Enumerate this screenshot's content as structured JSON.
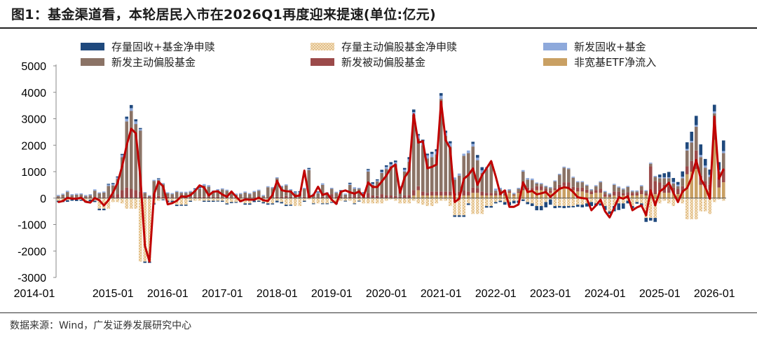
{
  "title": "图1：基金渠道看，本轮居民入市在2026Q1再度迎来提速(单位:亿元)",
  "source": "数据来源：Wind，广发证券发展研究中心",
  "colors": {
    "stock_fixed_plus": "#1F497D",
    "stock_active_equity": "#E9C896",
    "new_fixed_plus": "#8EA9DB",
    "new_active_equity": "#8B7366",
    "new_passive_equity": "#9B4A4A",
    "non_broad_etf": "#C9A063",
    "total_line": "#C00000"
  },
  "chart_data": {
    "type": "bar",
    "stacked": true,
    "title": "",
    "xlabel": "",
    "ylabel": "",
    "ylim": [
      -3000,
      5000
    ],
    "yticks": [
      5000,
      4000,
      3000,
      2000,
      1000,
      0,
      -1000,
      -2000,
      -3000
    ],
    "xtick_labels": [
      "2014-01",
      "2015-01",
      "2016-01",
      "2017-01",
      "2018-01",
      "2019-01",
      "2020-01",
      "2021-01",
      "2022-01",
      "2023-01",
      "2024-01",
      "2025-01",
      "2026-01"
    ],
    "grid": false,
    "legend_position": "top",
    "months": [
      "2014-01",
      "2014-02",
      "2014-03",
      "2014-04",
      "2014-05",
      "2014-06",
      "2014-07",
      "2014-08",
      "2014-09",
      "2014-10",
      "2014-11",
      "2014-12",
      "2015-01",
      "2015-02",
      "2015-03",
      "2015-04",
      "2015-05",
      "2015-06",
      "2015-07",
      "2015-08",
      "2015-09",
      "2015-10",
      "2015-11",
      "2015-12",
      "2016-01",
      "2016-02",
      "2016-03",
      "2016-04",
      "2016-05",
      "2016-06",
      "2016-07",
      "2016-08",
      "2016-09",
      "2016-10",
      "2016-11",
      "2016-12",
      "2017-01",
      "2017-02",
      "2017-03",
      "2017-04",
      "2017-05",
      "2017-06",
      "2017-07",
      "2017-08",
      "2017-09",
      "2017-10",
      "2017-11",
      "2017-12",
      "2018-01",
      "2018-02",
      "2018-03",
      "2018-04",
      "2018-05",
      "2018-06",
      "2018-07",
      "2018-08",
      "2018-09",
      "2018-10",
      "2018-11",
      "2018-12",
      "2019-01",
      "2019-02",
      "2019-03",
      "2019-04",
      "2019-05",
      "2019-06",
      "2019-07",
      "2019-08",
      "2019-09",
      "2019-10",
      "2019-11",
      "2019-12",
      "2020-01",
      "2020-02",
      "2020-03",
      "2020-04",
      "2020-05",
      "2020-06",
      "2020-07",
      "2020-08",
      "2020-09",
      "2020-10",
      "2020-11",
      "2020-12",
      "2021-01",
      "2021-02",
      "2021-03",
      "2021-04",
      "2021-05",
      "2021-06",
      "2021-07",
      "2021-08",
      "2021-09",
      "2021-10",
      "2021-11",
      "2021-12",
      "2022-01",
      "2022-02",
      "2022-03",
      "2022-04",
      "2022-05",
      "2022-06",
      "2022-07",
      "2022-08",
      "2022-09",
      "2022-10",
      "2022-11",
      "2022-12",
      "2023-01",
      "2023-02",
      "2023-03",
      "2023-04",
      "2023-05",
      "2023-06",
      "2023-07",
      "2023-08",
      "2023-09",
      "2023-10",
      "2023-11",
      "2023-12",
      "2024-01",
      "2024-02",
      "2024-03",
      "2024-04",
      "2024-05",
      "2024-06",
      "2024-07",
      "2024-08",
      "2024-09",
      "2024-10",
      "2024-11",
      "2024-12",
      "2025-01",
      "2025-02",
      "2025-03",
      "2025-04",
      "2025-05",
      "2025-06",
      "2025-07",
      "2025-08",
      "2025-09",
      "2025-10",
      "2025-11",
      "2025-12",
      "2026-01",
      "2026-02",
      "2026-03"
    ],
    "series": [
      {
        "key": "stock_fixed_plus",
        "name": "存量固收+基金净申赎",
        "values": [
          -50,
          -50,
          -60,
          -40,
          -50,
          -40,
          -60,
          -60,
          -50,
          -60,
          -60,
          30,
          40,
          40,
          40,
          80,
          120,
          80,
          40,
          -50,
          -50,
          -40,
          30,
          -30,
          -50,
          -50,
          -50,
          -40,
          -40,
          -40,
          30,
          30,
          -40,
          -40,
          -40,
          -30,
          -40,
          -40,
          -40,
          -30,
          -50,
          -50,
          -50,
          -50,
          -40,
          -50,
          -50,
          -40,
          -60,
          -50,
          -50,
          -40,
          30,
          40,
          -40,
          40,
          -30,
          30,
          -30,
          -30,
          -30,
          -30,
          30,
          -30,
          40,
          -30,
          -30,
          30,
          40,
          60,
          40,
          80,
          60,
          80,
          60,
          30,
          60,
          80,
          100,
          50,
          60,
          60,
          80,
          80,
          100,
          80,
          80,
          -60,
          -60,
          -60,
          -60,
          80,
          100,
          120,
          -60,
          -60,
          -50,
          -50,
          -100,
          -120,
          -100,
          -80,
          -60,
          -80,
          -100,
          -160,
          -160,
          -200,
          -200,
          -80,
          -60,
          -80,
          -60,
          -50,
          -80,
          -100,
          -120,
          -150,
          -100,
          -80,
          -150,
          -100,
          -200,
          -250,
          -200,
          -100,
          -80,
          -60,
          -100,
          -150,
          -100,
          -150,
          100,
          150,
          200,
          150,
          100,
          200,
          250,
          350,
          350,
          400,
          250,
          200,
          250,
          300,
          400
        ]
      },
      {
        "key": "stock_active_equity",
        "name": "存量主动偏股基金净申赎",
        "values": [
          -100,
          -100,
          -80,
          -60,
          -60,
          -60,
          -100,
          -60,
          -100,
          -400,
          -400,
          -400,
          -150,
          -150,
          -200,
          -400,
          -400,
          -400,
          -2400,
          -2400,
          -2400,
          -200,
          -100,
          -50,
          -100,
          -100,
          -250,
          -250,
          -250,
          -100,
          -100,
          -100,
          -100,
          -100,
          -100,
          -100,
          -100,
          -200,
          -150,
          -150,
          -100,
          -200,
          -200,
          -100,
          -100,
          -150,
          -200,
          -200,
          -100,
          -150,
          -250,
          -250,
          -300,
          -300,
          -100,
          -50,
          -200,
          -200,
          -200,
          -200,
          -150,
          -200,
          -100,
          -100,
          -100,
          -200,
          -100,
          -200,
          -200,
          -200,
          -200,
          -200,
          -100,
          -50,
          -100,
          -200,
          -200,
          -200,
          -100,
          -200,
          -250,
          -300,
          -300,
          -200,
          -100,
          -100,
          -300,
          -650,
          -650,
          -650,
          -200,
          -600,
          -600,
          -600,
          -300,
          -300,
          -150,
          -100,
          -150,
          -150,
          -100,
          -100,
          -50,
          -150,
          -200,
          -300,
          -300,
          -150,
          -50,
          -300,
          -300,
          -300,
          -300,
          -300,
          -250,
          -250,
          -200,
          -150,
          -200,
          -200,
          -300,
          -500,
          -300,
          -200,
          -200,
          -100,
          -300,
          -150,
          -200,
          -750,
          -750,
          -750,
          -200,
          -100,
          -200,
          -300,
          -150,
          -200,
          -800,
          -800,
          -800,
          -500,
          -500,
          -600,
          -150,
          -50,
          -100
        ]
      },
      {
        "key": "new_fixed_plus",
        "name": "新发固收+基金",
        "values": [
          40,
          40,
          50,
          40,
          40,
          40,
          40,
          40,
          50,
          40,
          40,
          50,
          50,
          50,
          80,
          100,
          100,
          100,
          60,
          30,
          30,
          40,
          40,
          40,
          40,
          40,
          40,
          40,
          40,
          40,
          40,
          40,
          60,
          60,
          40,
          40,
          40,
          40,
          40,
          40,
          40,
          40,
          40,
          40,
          40,
          40,
          40,
          40,
          40,
          40,
          40,
          40,
          40,
          40,
          40,
          40,
          40,
          40,
          60,
          40,
          40,
          40,
          40,
          40,
          40,
          60,
          40,
          40,
          60,
          40,
          40,
          40,
          80,
          80,
          80,
          60,
          80,
          100,
          100,
          120,
          150,
          120,
          120,
          120,
          120,
          120,
          120,
          80,
          80,
          80,
          100,
          100,
          100,
          100,
          80,
          80,
          80,
          60,
          60,
          40,
          40,
          40,
          60,
          60,
          60,
          40,
          40,
          40,
          40,
          40,
          40,
          40,
          40,
          40,
          40,
          40,
          40,
          40,
          40,
          40,
          40,
          40,
          40,
          40,
          40,
          40,
          40,
          40,
          40,
          40,
          40,
          40,
          40,
          40,
          40,
          60,
          60,
          60,
          60,
          60,
          60,
          80,
          80,
          80,
          80,
          60,
          80
        ]
      },
      {
        "key": "new_active_equity",
        "name": "新发主动偏股基金",
        "values": [
          50,
          100,
          200,
          80,
          100,
          110,
          50,
          80,
          250,
          150,
          180,
          430,
          380,
          580,
          1250,
          2500,
          2950,
          2500,
          2300,
          150,
          50,
          550,
          600,
          480,
          130,
          120,
          200,
          170,
          170,
          200,
          250,
          300,
          420,
          380,
          200,
          250,
          300,
          250,
          170,
          100,
          120,
          180,
          120,
          200,
          250,
          50,
          380,
          350,
          700,
          380,
          400,
          250,
          150,
          150,
          300,
          1000,
          100,
          150,
          450,
          150,
          200,
          150,
          180,
          100,
          450,
          200,
          300,
          100,
          800,
          400,
          550,
          800,
          1000,
          1100,
          1200,
          300,
          900,
          1250,
          2850,
          1800,
          1750,
          1300,
          1300,
          1400,
          3500,
          2100,
          1700,
          500,
          600,
          1300,
          1450,
          1550,
          1050,
          700,
          900,
          1100,
          100,
          150,
          100,
          50,
          30,
          100,
          650,
          300,
          300,
          100,
          80,
          80,
          100,
          250,
          380,
          550,
          500,
          350,
          200,
          200,
          150,
          50,
          150,
          250,
          80,
          50,
          250,
          150,
          150,
          200,
          50,
          50,
          150,
          80,
          100,
          150,
          150,
          250,
          300,
          150,
          100,
          300,
          600,
          700,
          900,
          700,
          500,
          300,
          700,
          200,
          600
        ]
      },
      {
        "key": "new_passive_equity",
        "name": "新发被动偏股基金",
        "values": [
          30,
          30,
          30,
          30,
          30,
          30,
          30,
          30,
          30,
          30,
          30,
          30,
          100,
          150,
          300,
          400,
          350,
          300,
          250,
          50,
          30,
          100,
          80,
          50,
          50,
          30,
          30,
          30,
          30,
          30,
          50,
          50,
          50,
          50,
          50,
          50,
          30,
          30,
          30,
          30,
          30,
          30,
          30,
          30,
          30,
          30,
          30,
          30,
          50,
          50,
          80,
          50,
          30,
          30,
          50,
          60,
          30,
          30,
          50,
          30,
          150,
          50,
          50,
          30,
          50,
          150,
          50,
          50,
          200,
          100,
          80,
          150,
          100,
          100,
          80,
          50,
          100,
          120,
          200,
          150,
          150,
          100,
          150,
          150,
          150,
          150,
          150,
          100,
          150,
          200,
          150,
          200,
          180,
          150,
          100,
          100,
          80,
          80,
          50,
          50,
          30,
          50,
          50,
          100,
          80,
          150,
          150,
          100,
          80,
          80,
          150,
          150,
          200,
          120,
          150,
          150,
          120,
          100,
          100,
          150,
          100,
          50,
          150,
          200,
          80,
          120,
          100,
          100,
          150,
          80,
          1100,
          500,
          350,
          300,
          250,
          200,
          200,
          250,
          300,
          400,
          700,
          350,
          250,
          200,
          300,
          400,
          500
        ]
      },
      {
        "key": "non_broad_etf",
        "name": "非宽基ETF净流入",
        "values": [
          0,
          0,
          0,
          0,
          0,
          0,
          0,
          0,
          0,
          0,
          0,
          0,
          0,
          0,
          0,
          0,
          0,
          0,
          0,
          0,
          0,
          0,
          0,
          0,
          0,
          0,
          0,
          0,
          0,
          0,
          0,
          0,
          0,
          0,
          0,
          0,
          0,
          0,
          0,
          0,
          0,
          0,
          0,
          0,
          0,
          0,
          0,
          0,
          0,
          0,
          0,
          0,
          0,
          0,
          0,
          0,
          0,
          0,
          0,
          0,
          0,
          0,
          0,
          0,
          0,
          0,
          0,
          0,
          0,
          0,
          0,
          0,
          0,
          0,
          0,
          0,
          0,
          0,
          100,
          300,
          100,
          100,
          100,
          100,
          100,
          100,
          100,
          100,
          100,
          100,
          100,
          200,
          200,
          100,
          100,
          100,
          100,
          100,
          100,
          200,
          100,
          200,
          300,
          300,
          300,
          300,
          300,
          250,
          200,
          300,
          350,
          450,
          400,
          300,
          250,
          250,
          200,
          150,
          200,
          200,
          50,
          50,
          100,
          50,
          100,
          100,
          100,
          100,
          150,
          100,
          100,
          150,
          250,
          200,
          200,
          200,
          150,
          200,
          900,
          1000,
          1100,
          500,
          400,
          300,
          2200,
          400,
          600
        ]
      }
    ],
    "line": {
      "type": "line",
      "values": [
        -150,
        -110,
        10,
        -20,
        -25,
        15,
        -140,
        -170,
        0,
        -80,
        -280,
        -80,
        210,
        580,
        1200,
        2000,
        2620,
        2450,
        800,
        -1800,
        -2400,
        150,
        620,
        440,
        -235,
        -190,
        -100,
        70,
        50,
        110,
        270,
        480,
        400,
        100,
        240,
        260,
        135,
        50,
        250,
        50,
        -120,
        -50,
        -60,
        -60,
        15,
        -80,
        -110,
        120,
        650,
        300,
        260,
        250,
        70,
        100,
        1040,
        40,
        110,
        430,
        120,
        180,
        -60,
        -220,
        240,
        290,
        220,
        170,
        250,
        60,
        590,
        420,
        420,
        630,
        850,
        1150,
        1270,
        200,
        780,
        1040,
        3170,
        2100,
        2150,
        1130,
        1180,
        1270,
        3650,
        2190,
        1880,
        -150,
        -20,
        730,
        870,
        1120,
        500,
        870,
        1130,
        1400,
        820,
        160,
        290,
        -330,
        -330,
        -240,
        600,
        230,
        270,
        140,
        180,
        230,
        50,
        200,
        350,
        410,
        380,
        230,
        30,
        0,
        -20,
        -460,
        -280,
        -60,
        -500,
        -730,
        -370,
        30,
        -20,
        70,
        -460,
        -350,
        -280,
        -650,
        290,
        -270,
        250,
        380,
        580,
        200,
        -150,
        250,
        380,
        780,
        1440,
        730,
        420,
        -20,
        3080,
        730,
        1090
      ]
    }
  }
}
